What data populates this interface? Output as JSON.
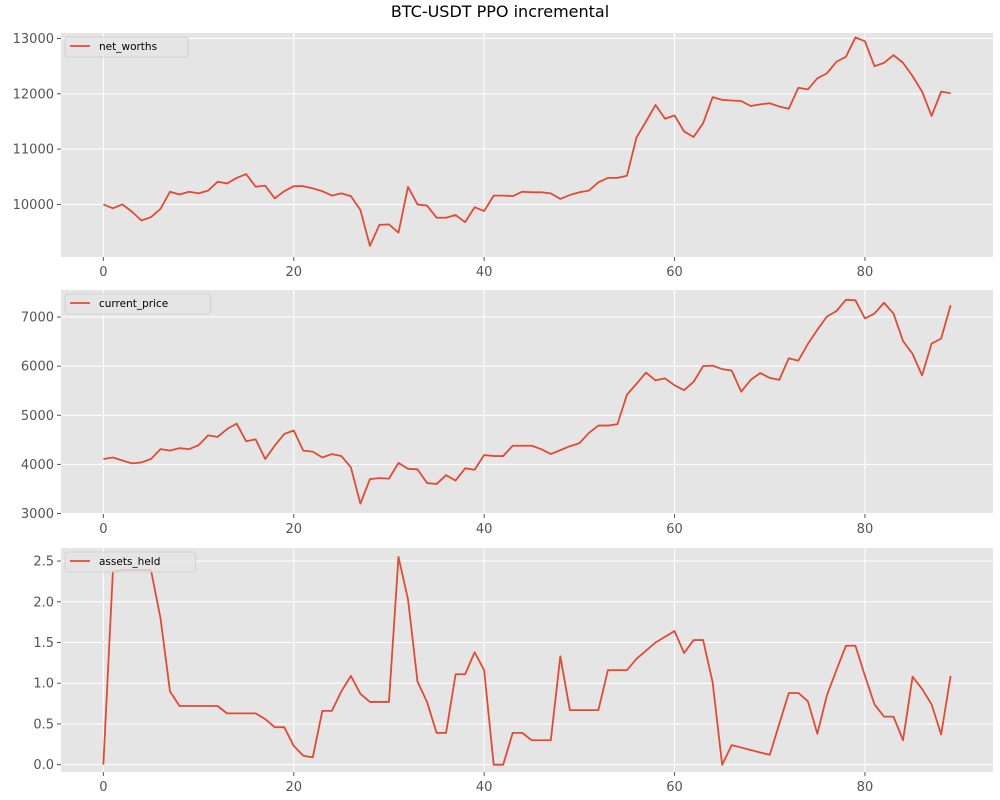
{
  "figure": {
    "title": "BTC-USDT PPO incremental"
  },
  "style": {
    "background": "#e5e5e5",
    "grid": "#ffffff",
    "line": "#e24a33",
    "tick_color": "#555555"
  },
  "chart_data": [
    {
      "type": "line",
      "grid": true,
      "legend": "top-left",
      "xlim": [
        -4.45,
        93.45
      ],
      "ylim": [
        9050,
        13100
      ],
      "xticks": [
        0,
        20,
        40,
        60,
        80
      ],
      "yticks": [
        10000,
        11000,
        12000,
        13000
      ],
      "series": [
        {
          "name": "net_worths",
          "values": [
            10000,
            9930,
            10000,
            9870,
            9710,
            9770,
            9920,
            10230,
            10180,
            10230,
            10200,
            10250,
            10410,
            10380,
            10480,
            10550,
            10320,
            10340,
            10110,
            10240,
            10330,
            10330,
            10290,
            10240,
            10160,
            10200,
            10150,
            9900,
            9250,
            9630,
            9640,
            9490,
            10320,
            10000,
            9980,
            9760,
            9760,
            9810,
            9680,
            9950,
            9880,
            10160,
            10160,
            10150,
            10230,
            10220,
            10220,
            10200,
            10100,
            10170,
            10220,
            10250,
            10400,
            10480,
            10480,
            10520,
            11210,
            11500,
            11800,
            11550,
            11610,
            11320,
            11220,
            11470,
            11940,
            11890,
            11880,
            11870,
            11780,
            11810,
            11830,
            11770,
            11730,
            12110,
            12080,
            12280,
            12370,
            12580,
            12670,
            13020,
            12950,
            12500,
            12560,
            12700,
            12560,
            12320,
            12040,
            11600,
            12040,
            12010
          ]
        }
      ]
    },
    {
      "type": "line",
      "grid": true,
      "legend": "top-left",
      "xlim": [
        -4.45,
        93.45
      ],
      "ylim": [
        2990,
        7550
      ],
      "xticks": [
        0,
        20,
        40,
        60,
        80
      ],
      "yticks": [
        3000,
        4000,
        5000,
        6000,
        7000
      ],
      "series": [
        {
          "name": "current_price",
          "values": [
            4110,
            4140,
            4080,
            4020,
            4040,
            4110,
            4310,
            4280,
            4330,
            4310,
            4390,
            4590,
            4560,
            4720,
            4830,
            4470,
            4510,
            4110,
            4380,
            4620,
            4690,
            4280,
            4260,
            4140,
            4210,
            4170,
            3940,
            3200,
            3700,
            3720,
            3710,
            4030,
            3910,
            3900,
            3620,
            3600,
            3780,
            3670,
            3920,
            3890,
            4190,
            4170,
            4170,
            4380,
            4380,
            4380,
            4310,
            4210,
            4290,
            4370,
            4430,
            4640,
            4790,
            4790,
            4820,
            5420,
            5640,
            5870,
            5710,
            5750,
            5610,
            5510,
            5680,
            6000,
            6010,
            5940,
            5910,
            5480,
            5720,
            5860,
            5760,
            5720,
            6160,
            6110,
            6450,
            6740,
            7010,
            7120,
            7350,
            7340,
            6970,
            7070,
            7290,
            7070,
            6510,
            6250,
            5810,
            6460,
            6560,
            7240
          ]
        }
      ]
    },
    {
      "type": "line",
      "grid": true,
      "legend": "top-left",
      "xlim": [
        -4.45,
        93.45
      ],
      "ylim": [
        -0.09,
        2.66
      ],
      "xticks": [
        0,
        20,
        40,
        60,
        80
      ],
      "yticks": [
        0.0,
        0.5,
        1.0,
        1.5,
        2.0,
        2.5
      ],
      "series": [
        {
          "name": "assets_held",
          "values": [
            0,
            2.37,
            2.39,
            2.39,
            2.39,
            2.39,
            1.8,
            0.9,
            0.72,
            0.72,
            0.72,
            0.72,
            0.72,
            0.63,
            0.63,
            0.63,
            0.63,
            0.56,
            0.46,
            0.46,
            0.23,
            0.11,
            0.09,
            0.66,
            0.66,
            0.9,
            1.09,
            0.87,
            0.77,
            0.77,
            0.77,
            2.55,
            2.03,
            1.02,
            0.77,
            0.39,
            0.39,
            1.11,
            1.11,
            1.38,
            1.16,
            0,
            0,
            0.39,
            0.39,
            0.3,
            0.3,
            0.3,
            1.33,
            0.67,
            0.67,
            0.67,
            0.67,
            1.16,
            1.16,
            1.16,
            1.3,
            1.4,
            1.5,
            1.57,
            1.64,
            1.37,
            1.53,
            1.53,
            1.01,
            0,
            0.24,
            0.21,
            0.18,
            0.15,
            0.12,
            0.5,
            0.88,
            0.88,
            0.78,
            0.38,
            0.85,
            1.16,
            1.46,
            1.46,
            1.09,
            0.74,
            0.59,
            0.59,
            0.3,
            1.08,
            0.93,
            0.74,
            0.37,
            1.09
          ]
        }
      ]
    }
  ]
}
